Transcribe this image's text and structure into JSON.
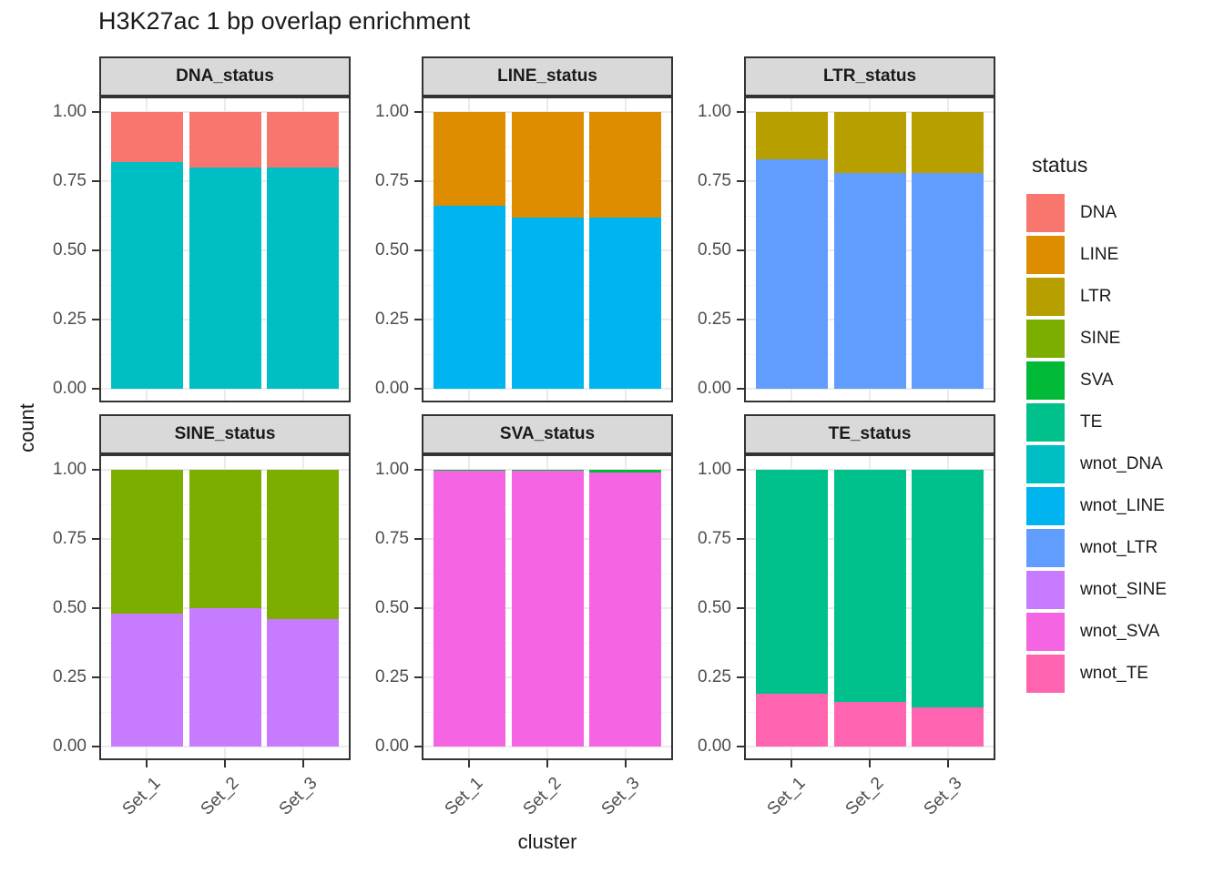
{
  "title": "H3K27ac 1 bp overlap enrichment",
  "axes": {
    "x_title": "cluster",
    "y_title": "count",
    "y_tick_labels": [
      "1.00",
      "0.75",
      "0.50",
      "0.25",
      "0.00"
    ],
    "x_tick_labels": [
      "Set_1",
      "Set_2",
      "Set_3"
    ]
  },
  "legend": {
    "title": "status",
    "items": [
      {
        "label": "DNA",
        "color": "#F8766D"
      },
      {
        "label": "LINE",
        "color": "#DE8C00"
      },
      {
        "label": "LTR",
        "color": "#B79F00"
      },
      {
        "label": "SINE",
        "color": "#7CAE00"
      },
      {
        "label": "SVA",
        "color": "#00BA38"
      },
      {
        "label": "TE",
        "color": "#00C08B"
      },
      {
        "label": "wnot_DNA",
        "color": "#00BFC4"
      },
      {
        "label": "wnot_LINE",
        "color": "#00B4F0"
      },
      {
        "label": "wnot_LTR",
        "color": "#619CFF"
      },
      {
        "label": "wnot_SINE",
        "color": "#C77CFF"
      },
      {
        "label": "wnot_SVA",
        "color": "#F564E3"
      },
      {
        "label": "wnot_TE",
        "color": "#FF64B0"
      }
    ]
  },
  "chart_data": {
    "type": "bar",
    "stacked": true,
    "stack_order": "first series listed is bottom of stack",
    "title": "H3K27ac 1 bp overlap enrichment",
    "xlabel": "cluster",
    "ylabel": "count",
    "ylim": [
      0,
      1
    ],
    "y_ticks": [
      0,
      0.25,
      0.5,
      0.75,
      1.0
    ],
    "y_minor_ticks": [
      0.125,
      0.375,
      0.625,
      0.875
    ],
    "categories": [
      "Set_1",
      "Set_2",
      "Set_3"
    ],
    "grid": true,
    "legend_title": "status",
    "legend_position": "right",
    "facet_layout": {
      "rows": 2,
      "cols": 3
    },
    "facets": [
      {
        "name": "DNA_status",
        "series": [
          {
            "name": "wnot_DNA",
            "color": "#00BFC4",
            "values": [
              0.82,
              0.8,
              0.8
            ]
          },
          {
            "name": "DNA",
            "color": "#F8766D",
            "values": [
              0.18,
              0.2,
              0.2
            ]
          }
        ]
      },
      {
        "name": "LINE_status",
        "series": [
          {
            "name": "wnot_LINE",
            "color": "#00B4F0",
            "values": [
              0.66,
              0.62,
              0.62
            ]
          },
          {
            "name": "LINE",
            "color": "#DE8C00",
            "values": [
              0.34,
              0.38,
              0.38
            ]
          }
        ]
      },
      {
        "name": "LTR_status",
        "series": [
          {
            "name": "wnot_LTR",
            "color": "#619CFF",
            "values": [
              0.83,
              0.78,
              0.78
            ]
          },
          {
            "name": "LTR",
            "color": "#B79F00",
            "values": [
              0.17,
              0.22,
              0.22
            ]
          }
        ]
      },
      {
        "name": "SINE_status",
        "series": [
          {
            "name": "wnot_SINE",
            "color": "#C77CFF",
            "values": [
              0.48,
              0.5,
              0.46
            ]
          },
          {
            "name": "SINE",
            "color": "#7CAE00",
            "values": [
              0.52,
              0.5,
              0.54
            ]
          }
        ]
      },
      {
        "name": "SVA_status",
        "series": [
          {
            "name": "wnot_SVA",
            "color": "#F564E3",
            "values": [
              0.996,
              0.996,
              0.99
            ]
          },
          {
            "name": "SVA",
            "color": "#00BA38",
            "values": [
              0.004,
              0.004,
              0.01
            ]
          }
        ]
      },
      {
        "name": "TE_status",
        "series": [
          {
            "name": "wnot_TE",
            "color": "#FF64B0",
            "values": [
              0.19,
              0.16,
              0.14
            ]
          },
          {
            "name": "TE",
            "color": "#00C08B",
            "values": [
              0.81,
              0.84,
              0.86
            ]
          }
        ]
      }
    ]
  }
}
